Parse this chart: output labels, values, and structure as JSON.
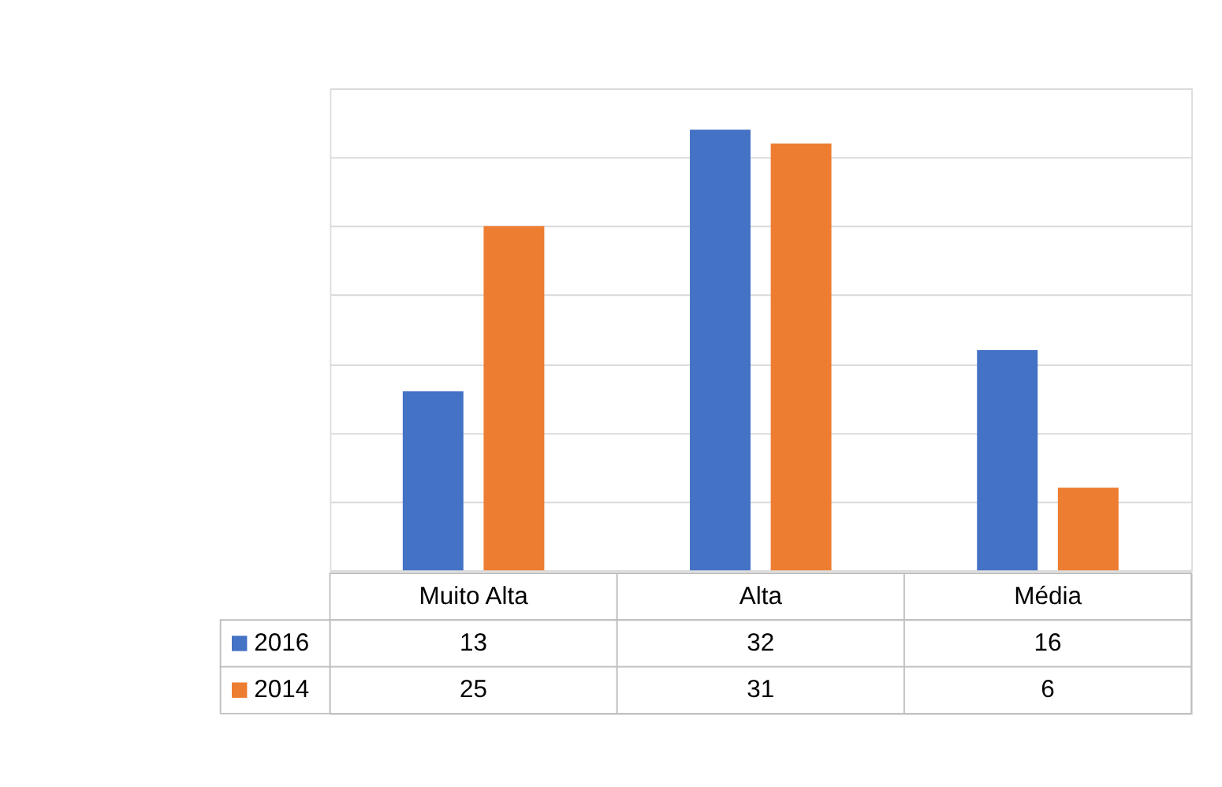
{
  "chart_data": {
    "type": "bar",
    "categories": [
      "Muito Alta",
      "Alta",
      "Média"
    ],
    "series": [
      {
        "name": "2016",
        "color": "#4472c4",
        "values": [
          13,
          32,
          16
        ]
      },
      {
        "name": "2014",
        "color": "#ed7d31",
        "values": [
          25,
          31,
          6
        ]
      }
    ],
    "ylim": [
      0,
      35
    ],
    "yticks": [
      {
        "value": 0,
        "label": null
      },
      {
        "value": 5,
        "label": null
      },
      {
        "value": 10,
        "label": null
      },
      {
        "value": 15,
        "label": null
      },
      {
        "value": 20,
        "label": null
      },
      {
        "value": 25,
        "label": null
      },
      {
        "value": 30,
        "label": null
      },
      {
        "value": 35,
        "label": null
      }
    ],
    "grid": "y",
    "tick_labels": "x",
    "data_labels": true,
    "legend": "bottom"
  }
}
